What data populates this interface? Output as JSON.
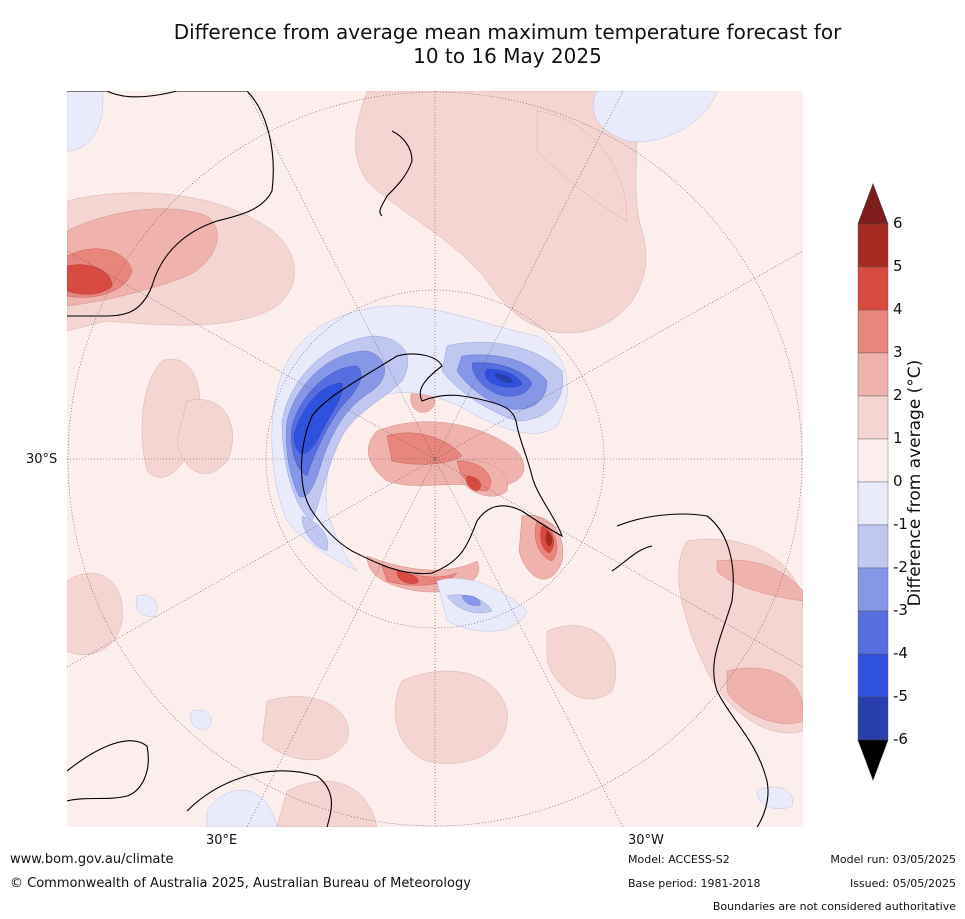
{
  "title_line1": "Difference from average mean maximum temperature forecast for",
  "title_line2": "10 to 16 May 2025",
  "map": {
    "lat_label": "30°S",
    "lon_labels": [
      "30°E",
      "30°W"
    ]
  },
  "colorbar": {
    "label": "Difference from average (°C)",
    "ticks": [
      "6",
      "5",
      "4",
      "3",
      "2",
      "1",
      "0",
      "-1",
      "-2",
      "-3",
      "-4",
      "-5",
      "-6"
    ],
    "colors": {
      "above_6": "#7f1d1d",
      "5_to_6": "#a52b23",
      "4_to_5": "#d94b40",
      "3_to_4": "#e8857c",
      "2_to_3": "#efb2ac",
      "1_to_2": "#f4d5d2",
      "0_to_1": "#fbeeec",
      "-1_to_0": "#e9ebfa",
      "-2_to_-1": "#c0c7f0",
      "-3_to_-2": "#8797e8",
      "-4_to_-3": "#566ee0",
      "-5_to_-4": "#2f51de",
      "-6_to_-5": "#2a3fae",
      "below_-6": "#1f2a7f"
    }
  },
  "footer": {
    "url": "www.bom.gov.au/climate",
    "copyright": "© Commonwealth of Australia 2025, Australian Bureau of Meteorology",
    "model": "Model: ACCESS-S2",
    "base_period": "Base period: 1981-2018",
    "model_run": "Model run: 03/05/2025",
    "issued": "Issued: 05/05/2025",
    "boundaries": "Boundaries are not considered authoritative"
  }
}
